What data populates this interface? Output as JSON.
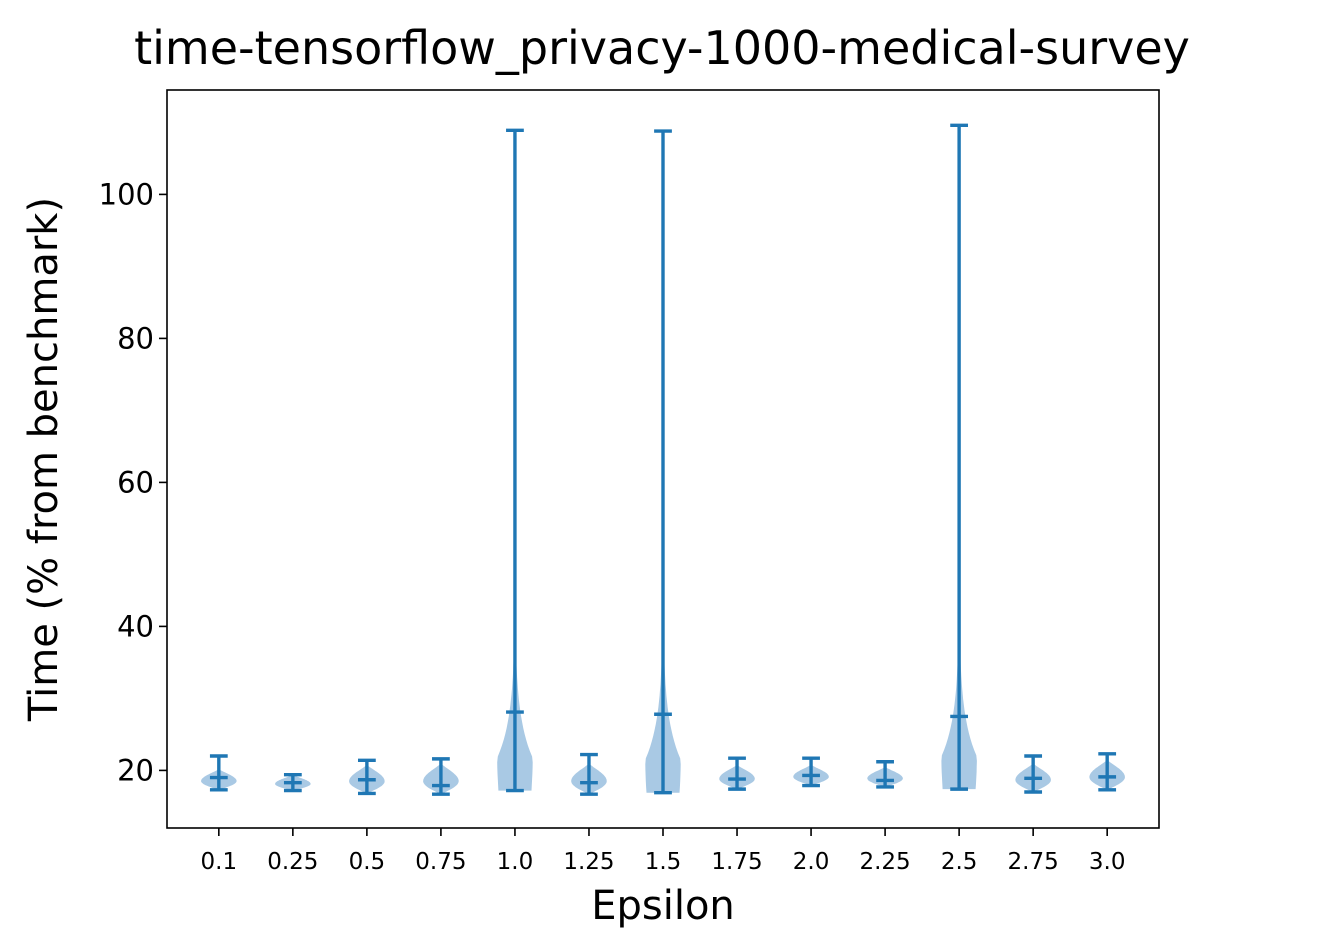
{
  "chart_data": {
    "type": "violin",
    "title": "time-tensorflow_privacy-1000-medical-survey",
    "xlabel": "Epsilon",
    "ylabel": "Time (% from benchmark)",
    "categories": [
      "0.1",
      "0.25",
      "0.5",
      "0.75",
      "1.0",
      "1.25",
      "1.5",
      "1.75",
      "2.0",
      "2.25",
      "2.5",
      "2.75",
      "3.0"
    ],
    "ylim": [
      12,
      114.5
    ],
    "yticks": [
      20,
      40,
      60,
      80,
      100
    ],
    "color": "#1f77b4",
    "fill_color": "#a9c9e4",
    "grid": false,
    "violins": [
      {
        "min": 17.3,
        "median": 19.0,
        "max": 22.0,
        "body_min": 17.3,
        "body_max": 20.2,
        "max_halfwidth": 0.24
      },
      {
        "min": 17.2,
        "median": 18.3,
        "max": 19.4,
        "body_min": 17.2,
        "body_max": 19.4,
        "max_halfwidth": 0.24
      },
      {
        "min": 16.8,
        "median": 18.7,
        "max": 21.4,
        "body_min": 16.8,
        "body_max": 20.8,
        "max_halfwidth": 0.24
      },
      {
        "min": 16.7,
        "median": 17.9,
        "max": 21.6,
        "body_min": 16.7,
        "body_max": 21.0,
        "max_halfwidth": 0.24
      },
      {
        "min": 17.2,
        "median": 28.1,
        "max": 108.9,
        "body_min": 17.2,
        "body_max": 55.0,
        "max_halfwidth": 0.24
      },
      {
        "min": 16.7,
        "median": 18.3,
        "max": 22.2,
        "body_min": 16.7,
        "body_max": 21.0,
        "max_halfwidth": 0.24
      },
      {
        "min": 16.9,
        "median": 27.8,
        "max": 108.8,
        "body_min": 16.9,
        "body_max": 55.0,
        "max_halfwidth": 0.24
      },
      {
        "min": 17.4,
        "median": 18.8,
        "max": 21.7,
        "body_min": 17.4,
        "body_max": 20.8,
        "max_halfwidth": 0.24
      },
      {
        "min": 17.9,
        "median": 19.3,
        "max": 21.7,
        "body_min": 17.9,
        "body_max": 20.8,
        "max_halfwidth": 0.24
      },
      {
        "min": 17.7,
        "median": 18.6,
        "max": 21.2,
        "body_min": 17.7,
        "body_max": 20.5,
        "max_halfwidth": 0.24
      },
      {
        "min": 17.4,
        "median": 27.5,
        "max": 109.6,
        "body_min": 17.4,
        "body_max": 55.0,
        "max_halfwidth": 0.24
      },
      {
        "min": 17.0,
        "median": 18.9,
        "max": 22.0,
        "body_min": 17.0,
        "body_max": 21.0,
        "max_halfwidth": 0.24
      },
      {
        "min": 17.3,
        "median": 19.1,
        "max": 22.3,
        "body_min": 17.3,
        "body_max": 21.5,
        "max_halfwidth": 0.24
      }
    ]
  }
}
